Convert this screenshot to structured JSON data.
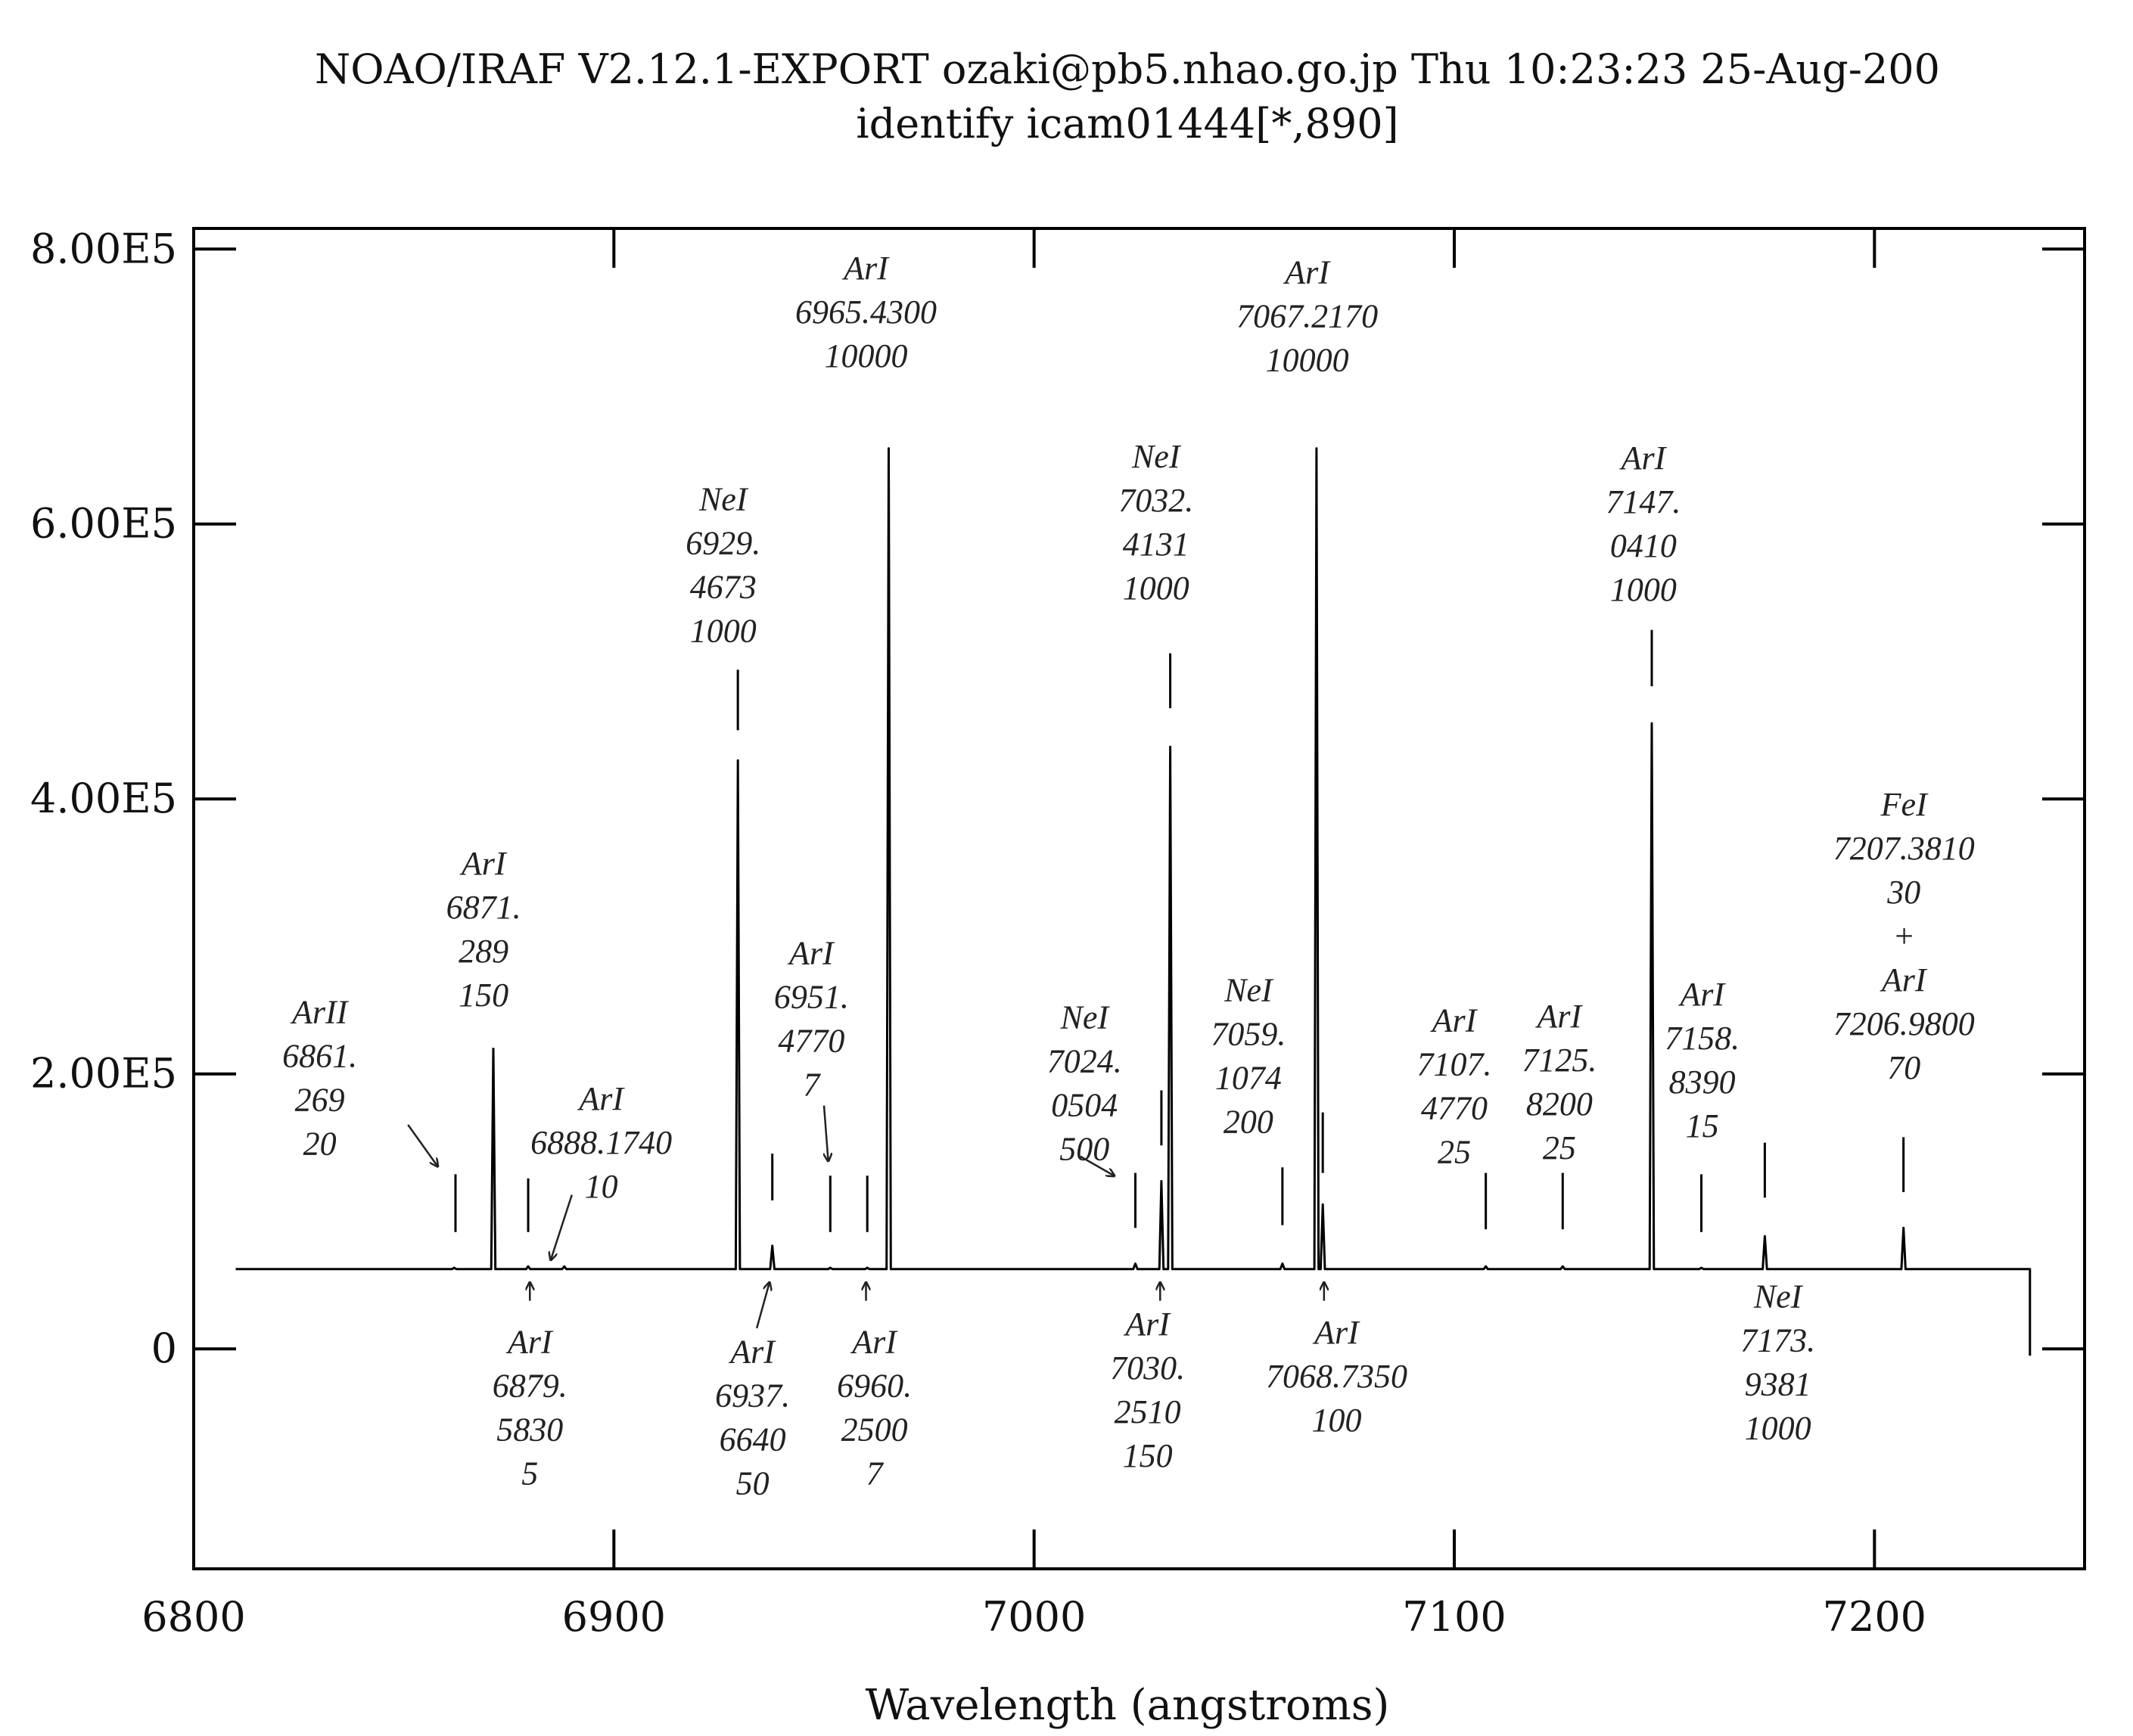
{
  "header": {
    "line1": "NOAO/IRAF V2.12.1-EXPORT ozaki@pb5.nhao.go.jp Thu 10:23:23 25-Aug-200",
    "line2": "identify icam01444[*,890]"
  },
  "chart_data": {
    "type": "line",
    "title": "NOAO/IRAF V2.12.1-EXPORT ozaki@pb5.nhao.go.jp Thu 10:23:23 25-Aug-200",
    "subtitle": "identify icam01444[*,890]",
    "xlabel": "Wavelength (angstroms)",
    "ylabel": "",
    "xlim": [
      6800,
      7250
    ],
    "ylim": [
      -160000,
      815000
    ],
    "x_ticks": [
      6800,
      6900,
      7000,
      7100,
      7200
    ],
    "y_ticks": [
      0,
      200000,
      400000,
      600000,
      800000
    ],
    "x_tick_labels": [
      "6800",
      "6900",
      "7000",
      "7100",
      "7200"
    ],
    "y_tick_labels": [
      "0",
      "2.00E5",
      "4.00E5",
      "6.00E5",
      "8.00E5"
    ],
    "grid": false,
    "series": [
      {
        "continuum": 58000,
        "x_start": 6810,
        "x_end": 7237,
        "drop_to": -5000,
        "peaks": [
          {
            "x": 6862,
            "y": 59000
          },
          {
            "x": 6871.3,
            "y": 218000
          },
          {
            "x": 6879.6,
            "y": 60000
          },
          {
            "x": 6888.2,
            "y": 60000
          },
          {
            "x": 6929.5,
            "y": 428000
          },
          {
            "x": 6937.7,
            "y": 75000
          },
          {
            "x": 6951.5,
            "y": 59000
          },
          {
            "x": 6960.3,
            "y": 59000
          },
          {
            "x": 6965.4,
            "y": 655000
          },
          {
            "x": 7024.1,
            "y": 62000
          },
          {
            "x": 7030.3,
            "y": 122000
          },
          {
            "x": 7032.4,
            "y": 438000
          },
          {
            "x": 7059.1,
            "y": 62000
          },
          {
            "x": 7067.2,
            "y": 655000
          },
          {
            "x": 7068.7,
            "y": 105000
          },
          {
            "x": 7107.5,
            "y": 60000
          },
          {
            "x": 7125.8,
            "y": 60000
          },
          {
            "x": 7147.0,
            "y": 455000
          },
          {
            "x": 7158.8,
            "y": 59000
          },
          {
            "x": 7173.9,
            "y": 82000
          },
          {
            "x": 7206.9,
            "y": 88000
          }
        ]
      }
    ],
    "line_markers": [
      {
        "x": 6862.3,
        "y_bottom": 85000,
        "y_top": 127000
      },
      {
        "x": 6871.3,
        "y_bottom": 150000,
        "y_top": 219000
      },
      {
        "x": 6879.6,
        "y_bottom": 85000,
        "y_top": 124000
      },
      {
        "x": 6929.5,
        "y_bottom": 450000,
        "y_top": 494000
      },
      {
        "x": 6937.7,
        "y_bottom": 108000,
        "y_top": 142000
      },
      {
        "x": 6951.5,
        "y_bottom": 85000,
        "y_top": 126000
      },
      {
        "x": 6960.3,
        "y_bottom": 85000,
        "y_top": 126000
      },
      {
        "x": 7024.1,
        "y_bottom": 88000,
        "y_top": 128000
      },
      {
        "x": 7030.3,
        "y_bottom": 148000,
        "y_top": 188000
      },
      {
        "x": 7032.4,
        "y_bottom": 466000,
        "y_top": 506000
      },
      {
        "x": 7059.1,
        "y_bottom": 90000,
        "y_top": 132000
      },
      {
        "x": 7068.7,
        "y_bottom": 128000,
        "y_top": 172000
      },
      {
        "x": 7107.5,
        "y_bottom": 87000,
        "y_top": 128000
      },
      {
        "x": 7125.8,
        "y_bottom": 87000,
        "y_top": 128000
      },
      {
        "x": 7147.0,
        "y_bottom": 482000,
        "y_top": 523000
      },
      {
        "x": 7158.8,
        "y_bottom": 85000,
        "y_top": 127000
      },
      {
        "x": 7173.9,
        "y_bottom": 110000,
        "y_top": 150000
      },
      {
        "x": 7206.9,
        "y_bottom": 114000,
        "y_top": 154000
      }
    ],
    "annotations": [
      {
        "x": 6830,
        "y": 237000,
        "lines": [
          "ArII",
          "6861.",
          "269",
          "20"
        ],
        "arrow": [
          6851,
          163000,
          6858,
          133000
        ]
      },
      {
        "x": 6869,
        "y": 345000,
        "lines": [
          "ArI",
          "6871.",
          "289",
          "150"
        ]
      },
      {
        "x": 6897,
        "y": 174000,
        "lines": [
          "ArI",
          "6888.1740",
          "10"
        ],
        "arrow": [
          6890,
          112000,
          6885,
          65000
        ]
      },
      {
        "x": 6926,
        "y": 610000,
        "lines": [
          "NeI",
          "6929.",
          "4673",
          "1000"
        ]
      },
      {
        "x": 6947,
        "y": 280000,
        "lines": [
          "ArI",
          "6951.",
          "4770",
          "7"
        ],
        "arrow": [
          6950,
          177000,
          6951,
          137000
        ]
      },
      {
        "x": 6960,
        "y": 778000,
        "lines": [
          "ArI",
          "6965.4300",
          "10000"
        ]
      },
      {
        "x": 7012,
        "y": 233000,
        "lines": [
          "NeI",
          "7024.",
          "0504",
          "500"
        ],
        "arrow": [
          7011,
          140000,
          7019,
          126000
        ]
      },
      {
        "x": 7029,
        "y": 641000,
        "lines": [
          "NeI",
          "7032.",
          "4131",
          "1000"
        ]
      },
      {
        "x": 7051,
        "y": 253000,
        "lines": [
          "NeI",
          "7059.",
          "1074",
          "200"
        ]
      },
      {
        "x": 7065,
        "y": 775000,
        "lines": [
          "ArI",
          "7067.2170",
          "10000"
        ]
      },
      {
        "x": 7100,
        "y": 231000,
        "lines": [
          "ArI",
          "7107.",
          "4770",
          "25"
        ]
      },
      {
        "x": 7125,
        "y": 234000,
        "lines": [
          "ArI",
          "7125.",
          "8200",
          "25"
        ]
      },
      {
        "x": 7145,
        "y": 640000,
        "lines": [
          "ArI",
          "7147.",
          "0410",
          "1000"
        ]
      },
      {
        "x": 7159,
        "y": 250000,
        "lines": [
          "ArI",
          "7158.",
          "8390",
          "15"
        ]
      },
      {
        "x": 7207,
        "y": 388000,
        "lines": [
          "FeI",
          "7207.3810",
          "30",
          "+",
          "ArI",
          "7206.9800",
          "70"
        ]
      },
      {
        "x": 6880,
        "y": -3000,
        "lines": [
          "ArI",
          "6879.",
          "5830",
          "5"
        ],
        "arrow": [
          6880,
          35000,
          6880,
          48000
        ]
      },
      {
        "x": 6933,
        "y": -10000,
        "lines": [
          "ArI",
          "6937.",
          "6640",
          "50"
        ],
        "arrow": [
          6934,
          15000,
          6937,
          48000
        ]
      },
      {
        "x": 6962,
        "y": -3000,
        "lines": [
          "ArI",
          "6960.",
          "2500",
          "7"
        ],
        "arrow": [
          6960,
          35000,
          6960,
          48000
        ]
      },
      {
        "x": 7027,
        "y": 10000,
        "lines": [
          "ArI",
          "7030.",
          "2510",
          "150"
        ],
        "arrow": [
          7030,
          35000,
          7030,
          48000
        ]
      },
      {
        "x": 7072,
        "y": 4000,
        "lines": [
          "ArI",
          "7068.7350",
          "100"
        ],
        "arrow": [
          7069,
          35000,
          7069,
          48000
        ]
      },
      {
        "x": 7177,
        "y": 30000,
        "lines": [
          "NeI",
          "7173.",
          "9381",
          "1000"
        ]
      }
    ]
  }
}
